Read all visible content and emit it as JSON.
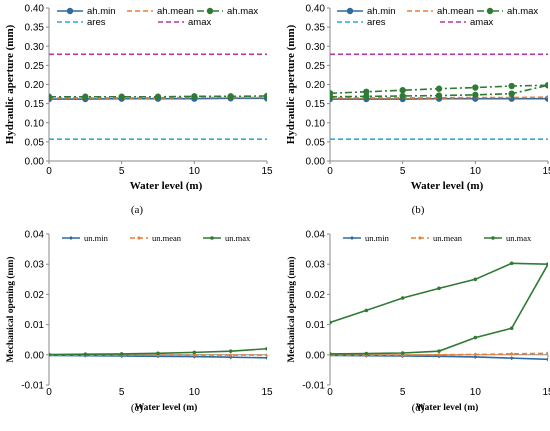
{
  "colors": {
    "blue": "#2E6A9E",
    "orange": "#ED7D31",
    "green": "#2F7A34",
    "cyan": "#31A9DB",
    "purple": "#B03A9C"
  },
  "chart_data": [
    {
      "panel": "a",
      "caption": "(a)",
      "type": "line",
      "xlabel": "Water level (m)",
      "ylabel": "Hydraulic aperture (mm)",
      "xlim": [
        0,
        15
      ],
      "ylim": [
        0,
        0.4
      ],
      "xticks": [
        "0",
        "5",
        "10",
        "15"
      ],
      "yticks": [
        "0.00",
        "0.05",
        "0.10",
        "0.15",
        "0.20",
        "0.25",
        "0.30",
        "0.35",
        "0.40"
      ],
      "x": [
        0,
        2.5,
        5,
        7.5,
        10,
        12.5,
        15
      ],
      "legend_position": "top",
      "series": [
        {
          "name": "ah.min",
          "values": [
            0.162,
            0.162,
            0.163,
            0.163,
            0.163,
            0.164,
            0.164
          ],
          "color": "blue",
          "style": "solid",
          "marker": "circle"
        },
        {
          "name": "ah.mean",
          "values": [
            0.165,
            0.165,
            0.165,
            0.165,
            0.166,
            0.166,
            0.166
          ],
          "color": "orange",
          "style": "dashed",
          "marker": "none"
        },
        {
          "name": "ah.max",
          "values": [
            0.168,
            0.168,
            0.168,
            0.168,
            0.169,
            0.169,
            0.17
          ],
          "color": "green",
          "style": "dashdot",
          "marker": "circle"
        },
        {
          "name": "ares",
          "values": [
            0.057,
            0.057,
            0.057,
            0.057,
            0.057,
            0.057,
            0.057
          ],
          "color": "cyan",
          "style": "dashed",
          "marker": "none"
        },
        {
          "name": "amax",
          "values": [
            0.279,
            0.279,
            0.279,
            0.279,
            0.279,
            0.279,
            0.279
          ],
          "color": "purple",
          "style": "dashed",
          "marker": "none"
        }
      ]
    },
    {
      "panel": "b",
      "caption": "(b)",
      "type": "line",
      "xlabel": "Water level (m)",
      "ylabel": "Hydraulic aperture (mm)",
      "xlim": [
        0,
        15
      ],
      "ylim": [
        0,
        0.4
      ],
      "xticks": [
        "0",
        "5",
        "10",
        "15"
      ],
      "yticks": [
        "0.00",
        "0.05",
        "0.10",
        "0.15",
        "0.20",
        "0.25",
        "0.30",
        "0.35",
        "0.40"
      ],
      "x": [
        0,
        2.5,
        5,
        7.5,
        10,
        12.5,
        15
      ],
      "legend_position": "top",
      "series": [
        {
          "name": "ah.min",
          "values": [
            0.162,
            0.162,
            0.162,
            0.163,
            0.163,
            0.163,
            0.163
          ],
          "color": "blue",
          "style": "solid",
          "marker": "circle"
        },
        {
          "name": "ah.mean",
          "values": [
            0.165,
            0.165,
            0.165,
            0.165,
            0.166,
            0.166,
            0.167
          ],
          "color": "orange",
          "style": "dashed",
          "marker": "none"
        },
        {
          "name": "ah.max",
          "values": [
            0.168,
            0.169,
            0.17,
            0.171,
            0.173,
            0.176,
            0.198
          ],
          "color": "green",
          "style": "dashdot",
          "marker": "circle"
        },
        {
          "name": "ah.max",
          "values": [
            0.177,
            0.181,
            0.185,
            0.189,
            0.192,
            0.196,
            0.198
          ],
          "color": "green",
          "style": "dashdot",
          "marker": "circle",
          "no_legend": true
        },
        {
          "name": "ares",
          "values": [
            0.057,
            0.057,
            0.057,
            0.057,
            0.057,
            0.057,
            0.057
          ],
          "color": "cyan",
          "style": "dashed",
          "marker": "none"
        },
        {
          "name": "amax",
          "values": [
            0.279,
            0.279,
            0.279,
            0.279,
            0.279,
            0.279,
            0.279
          ],
          "color": "purple",
          "style": "dashed",
          "marker": "none"
        }
      ]
    },
    {
      "panel": "c",
      "caption": "(c)",
      "type": "line",
      "xlabel": "Water level (m)",
      "ylabel": "Mechanical opening (mm)",
      "xlim": [
        0,
        15
      ],
      "ylim": [
        -0.01,
        0.04
      ],
      "xticks": [
        "0",
        "5",
        "10",
        "15"
      ],
      "yticks": [
        "-0.01",
        "0.00",
        "0.01",
        "0.02",
        "0.03",
        "0.04"
      ],
      "x": [
        0,
        2.5,
        5,
        7.5,
        10,
        12.5,
        15
      ],
      "legend_position": "top",
      "series": [
        {
          "name": "un.min",
          "values": [
            -0.0002,
            -0.0003,
            -0.0004,
            -0.0005,
            -0.0006,
            -0.0008,
            -0.001
          ],
          "color": "blue",
          "style": "solid",
          "marker": "diamond"
        },
        {
          "name": "un.mean",
          "values": [
            -0.0001,
            -0.0001,
            -0.0001,
            -0.0001,
            -0.0001,
            -0.0001,
            -0.0001
          ],
          "color": "orange",
          "style": "dashed",
          "marker": "diamond"
        },
        {
          "name": "un.max",
          "values": [
            0.0001,
            0.0002,
            0.0003,
            0.0005,
            0.0008,
            0.0012,
            0.002
          ],
          "color": "green",
          "style": "solid",
          "marker": "circle"
        }
      ]
    },
    {
      "panel": "d",
      "caption": "(d)",
      "type": "line",
      "xlabel": "Water level (m)",
      "ylabel": "Mechanical opening (mm)",
      "xlim": [
        0,
        15
      ],
      "ylim": [
        -0.01,
        0.04
      ],
      "xticks": [
        "0",
        "5",
        "10",
        "15"
      ],
      "yticks": [
        "-0.01",
        "0.00",
        "0.01",
        "0.02",
        "0.03",
        "0.04"
      ],
      "x": [
        0,
        2.5,
        5,
        7.5,
        10,
        12.5,
        15
      ],
      "legend_position": "top",
      "series": [
        {
          "name": "un.min",
          "values": [
            -0.0002,
            -0.0003,
            -0.0004,
            -0.0005,
            -0.0007,
            -0.0011,
            -0.0015
          ],
          "color": "blue",
          "style": "solid",
          "marker": "diamond"
        },
        {
          "name": "un.mean",
          "values": [
            -0.0001,
            -0.0001,
            -0.0001,
            0.0,
            0.0001,
            0.0003,
            0.0005
          ],
          "color": "orange",
          "style": "dashed",
          "marker": "diamond"
        },
        {
          "name": "un.max",
          "values": [
            0.0003,
            0.0004,
            0.0006,
            0.0012,
            0.0057,
            0.0088,
            0.03
          ],
          "color": "green",
          "style": "solid",
          "marker": "circle"
        },
        {
          "name": "un.max",
          "values": [
            0.0107,
            0.0147,
            0.0188,
            0.022,
            0.025,
            0.0303,
            0.03
          ],
          "color": "green",
          "style": "solid",
          "marker": "circle",
          "no_legend": true
        }
      ]
    }
  ]
}
